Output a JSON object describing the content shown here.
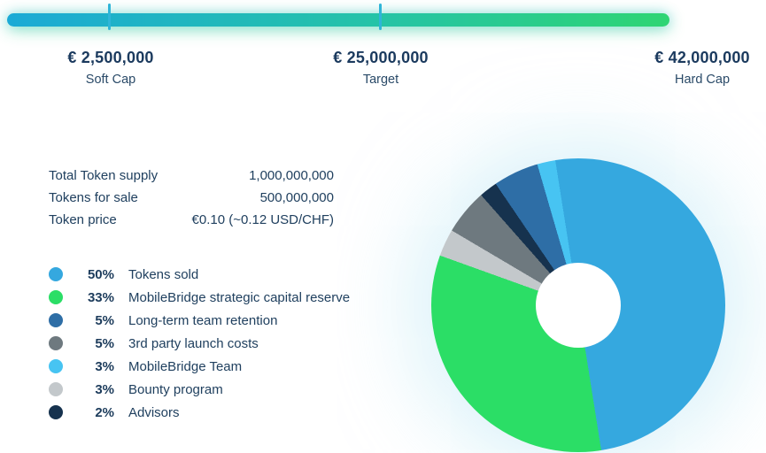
{
  "progress": {
    "bar_colors": {
      "start": "#1baad6",
      "mid": "#25c3a8",
      "end": "#2ed573"
    },
    "tick_color": "#2fb5d8",
    "markers": [
      {
        "amount": "€ 2,500,000",
        "caption": "Soft Cap"
      },
      {
        "amount": "€ 25,000,000",
        "caption": "Target"
      },
      {
        "amount": "€ 42,000,000",
        "caption": "Hard Cap"
      }
    ]
  },
  "token_info": {
    "rows": [
      {
        "label": "Total Token supply",
        "value": "1,000,000,000"
      },
      {
        "label": "Tokens for sale",
        "value": "500,000,000"
      },
      {
        "label": "Token price",
        "value": "€0.10 (~0.12 USD/CHF)"
      }
    ]
  },
  "chart_data": {
    "type": "pie",
    "donut": true,
    "start_angle_deg": -9,
    "title": "",
    "legend_position": "left",
    "segments": [
      {
        "label": "Tokens sold",
        "pct": 50,
        "color": "#35a8df"
      },
      {
        "label": "MobileBridge strategic capital reserve",
        "pct": 33,
        "color": "#2bde66"
      },
      {
        "label": "Long-term team retention",
        "pct": 5,
        "color": "#2e6ea6"
      },
      {
        "label": "3rd party launch costs",
        "pct": 5,
        "color": "#6e797f"
      },
      {
        "label": "MobileBridge Team",
        "pct": 3,
        "color": "#47c4f2"
      },
      {
        "label": "Bounty program",
        "pct": 3,
        "color": "#c3c8cb"
      },
      {
        "label": "Advisors",
        "pct": 2,
        "color": "#16324e"
      }
    ],
    "pie_draw_order": [
      0,
      1,
      5,
      3,
      6,
      2,
      4
    ]
  }
}
